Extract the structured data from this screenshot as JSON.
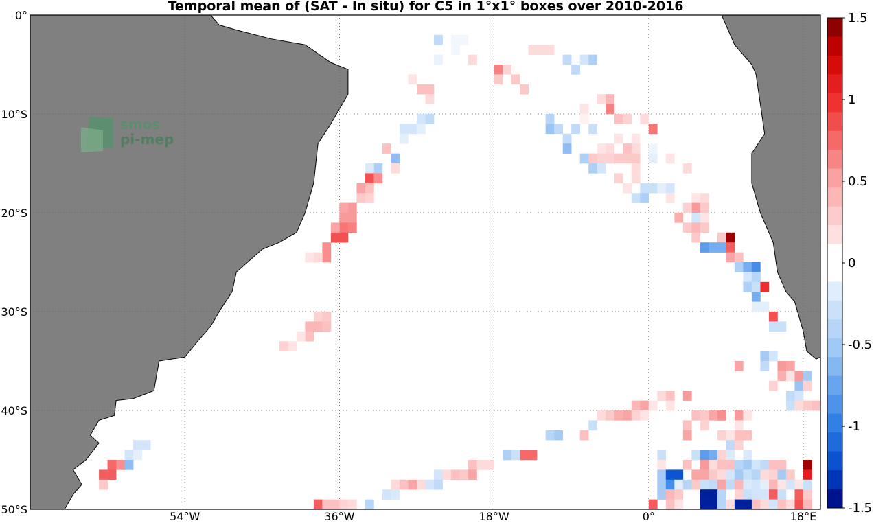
{
  "chart_data": {
    "type": "heatmap",
    "title": "Temporal mean of (SAT - In situ) for C5 in 1°x1° boxes over 2010-2016",
    "x_ticks": [
      "54°W",
      "36°W",
      "18°W",
      "0°",
      "18°E"
    ],
    "y_ticks": [
      "0°",
      "10°S",
      "20°S",
      "30°S",
      "40°S",
      "50°S"
    ],
    "colorbar_ticks": [
      "1.5",
      "1",
      "0.5",
      "0",
      "-0.5",
      "-1",
      "-1.5"
    ],
    "xlim": [
      -72,
      20
    ],
    "ylim": [
      -50,
      0
    ],
    "clim": [
      -1.5,
      1.5
    ],
    "grid": true,
    "logo_text": [
      "smos",
      "pi-mep"
    ],
    "colors": {
      "land": "#808080",
      "ocean": "#ffffff",
      "grid": "#666666"
    },
    "cells": [
      [
        -25,
        -2,
        -0.35
      ],
      [
        -23,
        -2,
        -0.08
      ],
      [
        -22,
        -2,
        -0.08
      ],
      [
        -23,
        -3,
        -0.08
      ],
      [
        -25,
        -4,
        -0.12
      ],
      [
        -21,
        -4,
        0.2
      ],
      [
        -12,
        -3,
        0.2
      ],
      [
        -13,
        -3,
        0.2
      ],
      [
        -14,
        -3,
        0.2
      ],
      [
        -10,
        -4,
        -0.35
      ],
      [
        -8,
        -4,
        -0.25
      ],
      [
        -7,
        -4,
        -0.45
      ],
      [
        -9,
        -5,
        -0.35
      ],
      [
        -18,
        -5,
        0.65
      ],
      [
        -17,
        -5,
        0.25
      ],
      [
        -18,
        -6,
        0.3
      ],
      [
        -16,
        -6,
        0.3
      ],
      [
        -28,
        -6,
        0.15
      ],
      [
        -27,
        -7,
        0.35
      ],
      [
        -26,
        -7,
        0.35
      ],
      [
        -26,
        -8,
        0.2
      ],
      [
        -15,
        -7,
        0.3
      ],
      [
        -6,
        -8,
        0.2
      ],
      [
        -5,
        -8,
        0.4
      ],
      [
        -5,
        -9,
        0.65
      ],
      [
        -8,
        -9,
        0.15
      ],
      [
        -8,
        -10,
        0.08
      ],
      [
        -4,
        -10,
        0.35
      ],
      [
        -3,
        -10,
        0.25
      ],
      [
        -1,
        -10,
        0.2
      ],
      [
        -12,
        -10,
        -0.4
      ],
      [
        -12,
        -11,
        -0.55
      ],
      [
        -11,
        -11,
        -0.35
      ],
      [
        -10,
        -12,
        -0.35
      ],
      [
        -10,
        -13,
        -0.6
      ],
      [
        -7,
        -11,
        -0.3
      ],
      [
        -9,
        -11,
        -0.35
      ],
      [
        0,
        -11,
        0.7
      ],
      [
        -26,
        -10,
        -0.35
      ],
      [
        -27,
        -10,
        -0.25
      ],
      [
        -28,
        -11,
        -0.25
      ],
      [
        -29,
        -11,
        -0.25
      ],
      [
        -27,
        -11,
        -0.15
      ],
      [
        -29,
        -12,
        -0.15
      ],
      [
        -2,
        -12,
        0.15
      ],
      [
        -4,
        -12,
        0.15
      ],
      [
        -5,
        -13,
        0.2
      ],
      [
        -6,
        -13,
        0.15
      ],
      [
        -3,
        -13,
        0.35
      ],
      [
        -2,
        -13,
        0.2
      ],
      [
        -1,
        -12,
        -0.05
      ],
      [
        0,
        -13,
        -0.1
      ],
      [
        2,
        -14,
        0.15
      ],
      [
        -7,
        -14,
        0.3
      ],
      [
        -8,
        -14,
        -0.45
      ],
      [
        -6,
        -14,
        0.25
      ],
      [
        -5,
        -14,
        0.25
      ],
      [
        -4,
        -14,
        0.3
      ],
      [
        -3,
        -14,
        0.3
      ],
      [
        -2,
        -14,
        0.3
      ],
      [
        -7,
        -15,
        -0.45
      ],
      [
        -6,
        -15,
        -0.25
      ],
      [
        -2,
        -15,
        0.2
      ],
      [
        0,
        -14,
        -0.15
      ],
      [
        -30,
        -14,
        -0.6
      ],
      [
        -30,
        -15,
        0.2
      ],
      [
        -31,
        -13,
        0.35
      ],
      [
        -32,
        -15,
        -0.45
      ],
      [
        -33,
        -15,
        -0.2
      ],
      [
        4,
        -15,
        0.2
      ],
      [
        -4,
        -16,
        0.25
      ],
      [
        -2,
        -16,
        0.2
      ],
      [
        -33,
        -16,
        0.85
      ],
      [
        -32,
        -16,
        0.6
      ],
      [
        -34,
        -17,
        0.5
      ],
      [
        -33,
        -17,
        0.35
      ],
      [
        -34,
        -18,
        0.3
      ],
      [
        -33,
        -18,
        0.25
      ],
      [
        -1,
        -17,
        -0.3
      ],
      [
        0,
        -17,
        -0.3
      ],
      [
        1,
        -17,
        -0.15
      ],
      [
        2,
        -17,
        -0.25
      ],
      [
        -3,
        -17,
        0.15
      ],
      [
        -2,
        -18,
        -0.3
      ],
      [
        -1,
        -18,
        -0.45
      ],
      [
        2,
        -18,
        0.15
      ],
      [
        5,
        -18,
        0.15
      ],
      [
        6,
        -18,
        0.2
      ],
      [
        -35,
        -19,
        0.55
      ],
      [
        -36,
        -19,
        0.5
      ],
      [
        5,
        -19,
        0.55
      ],
      [
        6,
        -19,
        0.3
      ],
      [
        4,
        -19,
        0.25
      ],
      [
        3,
        -20,
        0.45
      ],
      [
        5,
        -20,
        -0.25
      ],
      [
        6,
        -20,
        0.15
      ],
      [
        -36,
        -20,
        0.55
      ],
      [
        -35,
        -20,
        0.55
      ],
      [
        -36,
        -21,
        0.7
      ],
      [
        -35,
        -21,
        0.65
      ],
      [
        -37,
        -21,
        0.5
      ],
      [
        4,
        -21,
        0.3
      ],
      [
        5,
        -21,
        0.4
      ],
      [
        6,
        -21,
        0.3
      ],
      [
        -37,
        -22,
        0.85
      ],
      [
        -36,
        -22,
        0.85
      ],
      [
        5,
        -22,
        0.3
      ],
      [
        8,
        -22,
        0.3
      ],
      [
        9,
        -22,
        1.4
      ],
      [
        8,
        -23,
        -0.7
      ],
      [
        7,
        -23,
        -0.7
      ],
      [
        9,
        -23,
        0.8
      ],
      [
        6,
        -23,
        -0.8
      ],
      [
        -38,
        -23,
        0.6
      ],
      [
        -38,
        -24,
        0.6
      ],
      [
        -39,
        -24,
        0.2
      ],
      [
        -40,
        -24,
        0.15
      ],
      [
        9,
        -24,
        0.5
      ],
      [
        10,
        -24,
        0.35
      ],
      [
        10,
        -25,
        -0.45
      ],
      [
        11,
        -25,
        -0.7
      ],
      [
        12,
        -25,
        -0.9
      ],
      [
        11,
        -26,
        -0.25
      ],
      [
        12,
        -26,
        -0.4
      ],
      [
        11,
        -27,
        -0.45
      ],
      [
        12,
        -27,
        -0.3
      ],
      [
        13,
        -27,
        1.0
      ],
      [
        12,
        -28,
        -0.7
      ],
      [
        13,
        -29,
        -0.15
      ],
      [
        12,
        -29,
        -0.15
      ],
      [
        14,
        -30,
        0.85
      ],
      [
        14,
        -31,
        -0.3
      ],
      [
        15,
        -31,
        -0.3
      ],
      [
        -38,
        -30,
        0.3
      ],
      [
        -39,
        -30,
        0.25
      ],
      [
        -38,
        -31,
        0.35
      ],
      [
        -39,
        -31,
        0.4
      ],
      [
        -40,
        -31,
        0.4
      ],
      [
        -40,
        -32,
        0.35
      ],
      [
        -41,
        -32,
        0.15
      ],
      [
        -42,
        -33,
        0.15
      ],
      [
        -43,
        -33,
        0.25
      ],
      [
        13,
        -34,
        -0.5
      ],
      [
        14,
        -34,
        -0.25
      ],
      [
        13,
        -35,
        -0.35
      ],
      [
        10,
        -35,
        0.5
      ],
      [
        15,
        -35,
        0.55
      ],
      [
        16,
        -35,
        0.5
      ],
      [
        18,
        -35,
        0.05
      ],
      [
        15,
        -36,
        0.45
      ],
      [
        16,
        -36,
        0.15
      ],
      [
        17,
        -36,
        0.55
      ],
      [
        18,
        -36,
        -0.5
      ],
      [
        19,
        -36,
        -0.05
      ],
      [
        14,
        -37,
        0.25
      ],
      [
        17,
        -37,
        -0.55
      ],
      [
        18,
        -37,
        0.25
      ],
      [
        16,
        -38,
        -0.35
      ],
      [
        17,
        -38,
        -0.25
      ],
      [
        16,
        -39,
        -0.3
      ],
      [
        17,
        -39,
        0.2
      ],
      [
        18,
        -39,
        0.3
      ],
      [
        19,
        -39,
        0.35
      ],
      [
        1,
        -38,
        0.2
      ],
      [
        2,
        -38,
        0.35
      ],
      [
        4,
        -38,
        0.55
      ],
      [
        -2,
        -39,
        0.4
      ],
      [
        -1,
        -39,
        0.5
      ],
      [
        0,
        -39,
        0.15
      ],
      [
        2,
        -39,
        0.15
      ],
      [
        -6,
        -40,
        0.2
      ],
      [
        -5,
        -40,
        0.3
      ],
      [
        -4,
        -40,
        0.45
      ],
      [
        -3,
        -40,
        0.5
      ],
      [
        -2,
        -40,
        0.25
      ],
      [
        -1,
        -40,
        0.15
      ],
      [
        5,
        -40,
        0.35
      ],
      [
        6,
        -40,
        0.3
      ],
      [
        7,
        -40,
        0.5
      ],
      [
        8,
        -40,
        0.15
      ],
      [
        8,
        -40,
        0.6
      ],
      [
        10,
        -40,
        0.55
      ],
      [
        11,
        -40,
        0.15
      ],
      [
        4,
        -41,
        0.35
      ],
      [
        6,
        -41,
        0.25
      ],
      [
        10,
        -41,
        0.15
      ],
      [
        -7,
        -41,
        -0.3
      ],
      [
        4,
        -42,
        0.5
      ],
      [
        -12,
        -42,
        -0.4
      ],
      [
        -11,
        -42,
        -0.5
      ],
      [
        -8,
        -42,
        0.35
      ],
      [
        8,
        -42,
        0.25
      ],
      [
        9,
        -42,
        0.15
      ],
      [
        10,
        -42,
        0.35
      ],
      [
        11,
        -42,
        0.35
      ],
      [
        1,
        -43,
        -0.05
      ],
      [
        9,
        -43,
        -0.35
      ],
      [
        10,
        -43,
        0.25
      ],
      [
        -17,
        -44,
        -0.45
      ],
      [
        -16,
        -44,
        -0.3
      ],
      [
        -15,
        -44,
        0.75
      ],
      [
        -14,
        -44,
        0.75
      ],
      [
        1,
        -44,
        -0.3
      ],
      [
        5,
        -44,
        -0.3
      ],
      [
        6,
        -44,
        -0.8
      ],
      [
        7,
        -44,
        -0.7
      ],
      [
        8,
        -44,
        0.25
      ],
      [
        9,
        -44,
        -0.2
      ],
      [
        11,
        -44,
        -0.2
      ],
      [
        -21,
        -45,
        0.35
      ],
      [
        -20,
        -45,
        0.2
      ],
      [
        -19,
        -45,
        0.2
      ],
      [
        1,
        -45,
        0.15
      ],
      [
        4,
        -45,
        0.35
      ],
      [
        6,
        -45,
        0.55
      ],
      [
        7,
        -45,
        0.2
      ],
      [
        8,
        -45,
        0.35
      ],
      [
        9,
        -45,
        0.35
      ],
      [
        10,
        -45,
        -0.4
      ],
      [
        11,
        -45,
        -0.5
      ],
      [
        12,
        -45,
        -0.25
      ],
      [
        13,
        -45,
        -0.35
      ],
      [
        14,
        -45,
        0.35
      ],
      [
        15,
        -45,
        0.35
      ],
      [
        18,
        -45,
        1.4
      ],
      [
        -25,
        -46,
        -0.25
      ],
      [
        -24,
        -46,
        0.2
      ],
      [
        -23,
        -46,
        0.35
      ],
      [
        -22,
        -46,
        0.3
      ],
      [
        -21,
        -46,
        0.5
      ],
      [
        1,
        -46,
        -0.5
      ],
      [
        2,
        -46,
        -1.2
      ],
      [
        3,
        -46,
        -1.2
      ],
      [
        5,
        -46,
        0.5
      ],
      [
        6,
        -46,
        0.5
      ],
      [
        7,
        -46,
        0.3
      ],
      [
        8,
        -46,
        0.2
      ],
      [
        9,
        -46,
        -0.25
      ],
      [
        10,
        -46,
        -0.5
      ],
      [
        11,
        -46,
        -0.3
      ],
      [
        12,
        -46,
        -0.4
      ],
      [
        13,
        -46,
        0.2
      ],
      [
        14,
        -46,
        0.25
      ],
      [
        15,
        -46,
        -0.5
      ],
      [
        16,
        -46,
        0.3
      ],
      [
        18,
        -46,
        1.1
      ],
      [
        -30,
        -47,
        0.2
      ],
      [
        -29,
        -47,
        0.35
      ],
      [
        -28,
        -47,
        0.5
      ],
      [
        -27,
        -47,
        0.2
      ],
      [
        -26,
        -47,
        -0.25
      ],
      [
        -25,
        -47,
        -0.35
      ],
      [
        1,
        -47,
        -0.5
      ],
      [
        2,
        -47,
        -0.9
      ],
      [
        3,
        -47,
        -0.15
      ],
      [
        4,
        -47,
        -0.4
      ],
      [
        5,
        -47,
        0.3
      ],
      [
        6,
        -47,
        -0.3
      ],
      [
        7,
        -47,
        -0.35
      ],
      [
        8,
        -47,
        0.5
      ],
      [
        9,
        -47,
        -0.35
      ],
      [
        10,
        -47,
        0.4
      ],
      [
        11,
        -47,
        -0.2
      ],
      [
        12,
        -47,
        -0.25
      ],
      [
        13,
        -47,
        -0.15
      ],
      [
        14,
        -47,
        0.4
      ],
      [
        15,
        -47,
        0.15
      ],
      [
        16,
        -47,
        -0.25
      ],
      [
        17,
        -47,
        0.15
      ],
      [
        18,
        -47,
        -0.3
      ],
      [
        -31,
        -48,
        -0.25
      ],
      [
        -30,
        -48,
        -0.2
      ],
      [
        1,
        -48,
        -0.5
      ],
      [
        2,
        -48,
        0.4
      ],
      [
        3,
        -48,
        0.3
      ],
      [
        6,
        -48,
        -1.4
      ],
      [
        7,
        -48,
        -1.4
      ],
      [
        8,
        -48,
        -0.4
      ],
      [
        10,
        -48,
        0.25
      ],
      [
        11,
        -48,
        -0.3
      ],
      [
        12,
        -48,
        -0.25
      ],
      [
        13,
        -48,
        -0.25
      ],
      [
        14,
        -48,
        0.8
      ],
      [
        15,
        -48,
        -0.3
      ],
      [
        17,
        -48,
        0.8
      ],
      [
        18,
        -48,
        0.3
      ],
      [
        -39,
        -49,
        0.8
      ],
      [
        -38,
        -49,
        0.35
      ],
      [
        -37,
        -49,
        0.35
      ],
      [
        -36,
        -49,
        0.25
      ],
      [
        -35,
        -49,
        0.2
      ],
      [
        -33,
        -49,
        -0.4
      ],
      [
        0,
        -49,
        0.8
      ],
      [
        2,
        -49,
        0.35
      ],
      [
        3,
        -49,
        0.15
      ],
      [
        6,
        -49,
        -1.4
      ],
      [
        7,
        -49,
        -1.4
      ],
      [
        8,
        -49,
        -0.4
      ],
      [
        9,
        -49,
        0.2
      ],
      [
        10,
        -49,
        -1.4
      ],
      [
        11,
        -49,
        -1.4
      ],
      [
        12,
        -49,
        0.35
      ],
      [
        13,
        -49,
        0.2
      ],
      [
        14,
        -49,
        -0.25
      ],
      [
        15,
        -49,
        0.35
      ],
      [
        16,
        -49,
        0.2
      ],
      [
        17,
        -49,
        0.85
      ],
      [
        18,
        -49,
        0.4
      ],
      [
        -60,
        -43,
        -0.25
      ],
      [
        -59,
        -43,
        -0.25
      ],
      [
        -61,
        -44,
        -0.25
      ],
      [
        -60,
        -44,
        -0.15
      ],
      [
        -62,
        -45,
        0.6
      ],
      [
        -61,
        -45,
        -0.6
      ],
      [
        -63,
        -45,
        0.75
      ],
      [
        -64,
        -46,
        0.8
      ],
      [
        -63,
        -46,
        0.8
      ],
      [
        -64,
        -47,
        0.3
      ]
    ]
  }
}
